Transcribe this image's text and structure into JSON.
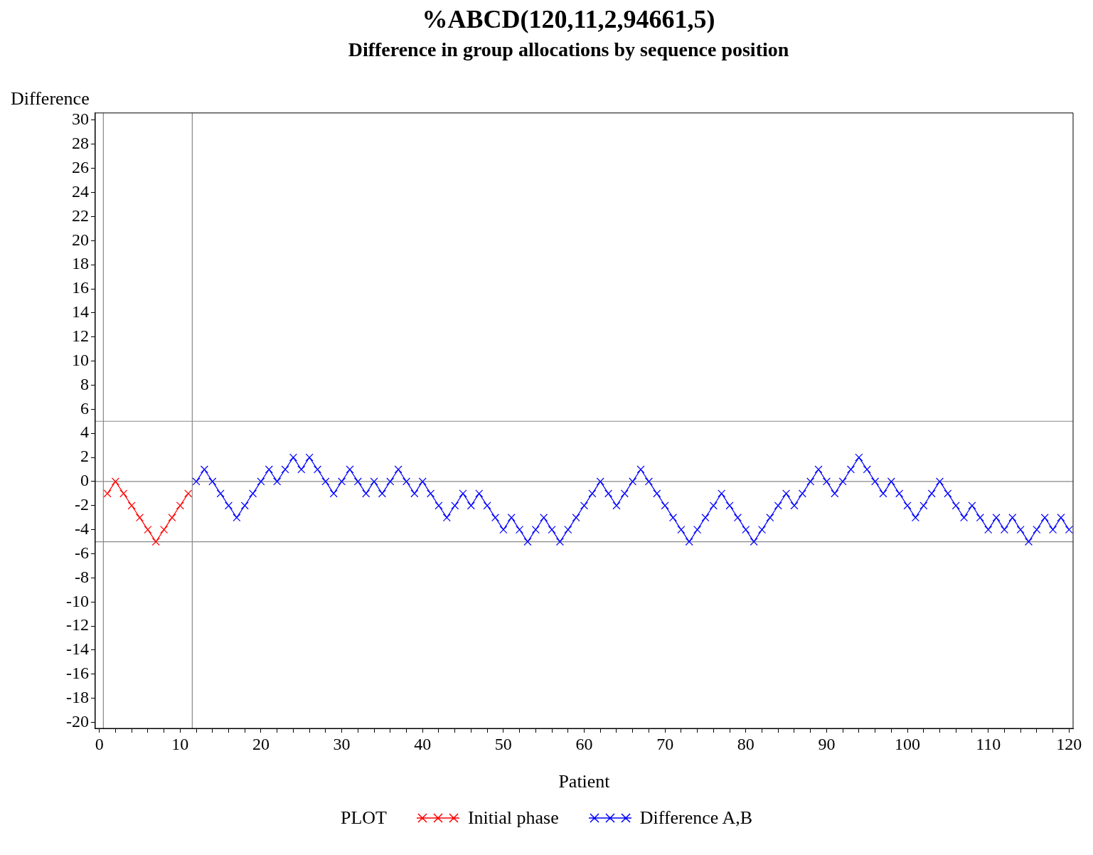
{
  "chart_data": {
    "type": "line",
    "title": "%ABCD(120,11,2,94661,5)",
    "subtitle": "Difference in group allocations by sequence position",
    "xlabel": "Patient",
    "ylabel": "Difference",
    "legend_title": "PLOT",
    "legend": "bottom",
    "grid": false,
    "marker": "cross",
    "line_style": "solid",
    "xlim": [
      -0.5,
      120.5
    ],
    "ylim": [
      -20.5,
      30.6
    ],
    "xticks": [
      0,
      {
        "value": 2,
        "label": null
      },
      {
        "value": 4,
        "label": null
      },
      {
        "value": 6,
        "label": null
      },
      {
        "value": 8,
        "label": null
      },
      10,
      {
        "value": 12,
        "label": null
      },
      {
        "value": 14,
        "label": null
      },
      {
        "value": 16,
        "label": null
      },
      {
        "value": 18,
        "label": null
      },
      20,
      {
        "value": 22,
        "label": null
      },
      {
        "value": 24,
        "label": null
      },
      {
        "value": 26,
        "label": null
      },
      {
        "value": 28,
        "label": null
      },
      30,
      {
        "value": 32,
        "label": null
      },
      {
        "value": 34,
        "label": null
      },
      {
        "value": 36,
        "label": null
      },
      {
        "value": 38,
        "label": null
      },
      40,
      {
        "value": 42,
        "label": null
      },
      {
        "value": 44,
        "label": null
      },
      {
        "value": 46,
        "label": null
      },
      {
        "value": 48,
        "label": null
      },
      50,
      {
        "value": 52,
        "label": null
      },
      {
        "value": 54,
        "label": null
      },
      {
        "value": 56,
        "label": null
      },
      {
        "value": 58,
        "label": null
      },
      60,
      {
        "value": 62,
        "label": null
      },
      {
        "value": 64,
        "label": null
      },
      {
        "value": 66,
        "label": null
      },
      {
        "value": 68,
        "label": null
      },
      70,
      {
        "value": 72,
        "label": null
      },
      {
        "value": 74,
        "label": null
      },
      {
        "value": 76,
        "label": null
      },
      {
        "value": 78,
        "label": null
      },
      80,
      {
        "value": 82,
        "label": null
      },
      {
        "value": 84,
        "label": null
      },
      {
        "value": 86,
        "label": null
      },
      {
        "value": 88,
        "label": null
      },
      90,
      {
        "value": 92,
        "label": null
      },
      {
        "value": 94,
        "label": null
      },
      {
        "value": 96,
        "label": null
      },
      {
        "value": 98,
        "label": null
      },
      100,
      {
        "value": 102,
        "label": null
      },
      {
        "value": 104,
        "label": null
      },
      {
        "value": 106,
        "label": null
      },
      {
        "value": 108,
        "label": null
      },
      110,
      {
        "value": 112,
        "label": null
      },
      {
        "value": 114,
        "label": null
      },
      {
        "value": 116,
        "label": null
      },
      {
        "value": 118,
        "label": null
      },
      120
    ],
    "yticks": [
      -20,
      -18,
      -16,
      -14,
      -12,
      -10,
      -8,
      -6,
      -4,
      -2,
      0,
      2,
      4,
      6,
      8,
      10,
      12,
      14,
      16,
      18,
      20,
      22,
      24,
      26,
      28,
      30
    ],
    "ref_lines": [
      {
        "axis": "y",
        "value": 5,
        "label": null,
        "color": "#888888"
      },
      {
        "axis": "y",
        "value": 0,
        "label": null,
        "color": "#888888"
      },
      {
        "axis": "y",
        "value": -5,
        "label": null,
        "color": "#888888"
      },
      {
        "axis": "x",
        "value": 0.5,
        "label": null,
        "color": "#888888"
      },
      {
        "axis": "x",
        "value": 11.5,
        "label": null,
        "color": "#888888"
      }
    ],
    "series": [
      {
        "name": "Initial phase",
        "color": "#ff0000",
        "x": [
          1,
          2,
          3,
          4,
          5,
          6,
          7,
          8,
          9,
          10,
          11
        ],
        "values": [
          -1,
          0,
          -1,
          -2,
          -3,
          -4,
          -5,
          -4,
          -3,
          -2,
          -1
        ]
      },
      {
        "name": "Difference A,B",
        "color": "#0000ff",
        "x": [
          12,
          13,
          14,
          15,
          16,
          17,
          18,
          19,
          20,
          21,
          22,
          23,
          24,
          25,
          26,
          27,
          28,
          29,
          30,
          31,
          32,
          33,
          34,
          35,
          36,
          37,
          38,
          39,
          40,
          41,
          42,
          43,
          44,
          45,
          46,
          47,
          48,
          49,
          50,
          51,
          52,
          53,
          54,
          55,
          56,
          57,
          58,
          59,
          60,
          61,
          62,
          63,
          64,
          65,
          66,
          67,
          68,
          69,
          70,
          71,
          72,
          73,
          74,
          75,
          76,
          77,
          78,
          79,
          80,
          81,
          82,
          83,
          84,
          85,
          86,
          87,
          88,
          89,
          90,
          91,
          92,
          93,
          94,
          95,
          96,
          97,
          98,
          99,
          100,
          101,
          102,
          103,
          104,
          105,
          106,
          107,
          108,
          109,
          110,
          111,
          112,
          113,
          114,
          115,
          116,
          117,
          118,
          119,
          120
        ],
        "values": [
          0,
          1,
          0,
          -1,
          -2,
          -3,
          -2,
          -1,
          0,
          1,
          0,
          1,
          2,
          1,
          2,
          1,
          0,
          -1,
          0,
          1,
          0,
          -1,
          0,
          -1,
          0,
          1,
          0,
          -1,
          0,
          -1,
          -2,
          -3,
          -2,
          -1,
          -2,
          -1,
          -2,
          -3,
          -4,
          -3,
          -4,
          -5,
          -4,
          -3,
          -4,
          -5,
          -4,
          -3,
          -2,
          -1,
          0,
          -1,
          -2,
          -1,
          0,
          1,
          0,
          -1,
          -2,
          -3,
          -4,
          -5,
          -4,
          -3,
          -2,
          -1,
          -2,
          -3,
          -4,
          -5,
          -4,
          -3,
          -2,
          -1,
          -2,
          -1,
          0,
          1,
          0,
          -1,
          0,
          1,
          2,
          1,
          0,
          -1,
          0,
          -1,
          -2,
          -3,
          -2,
          -1,
          0,
          -1,
          -2,
          -3,
          -2,
          -3,
          -4,
          -3,
          -4,
          -3,
          -4,
          -5,
          -4,
          -3,
          -4,
          -3,
          -4
        ]
      }
    ]
  }
}
